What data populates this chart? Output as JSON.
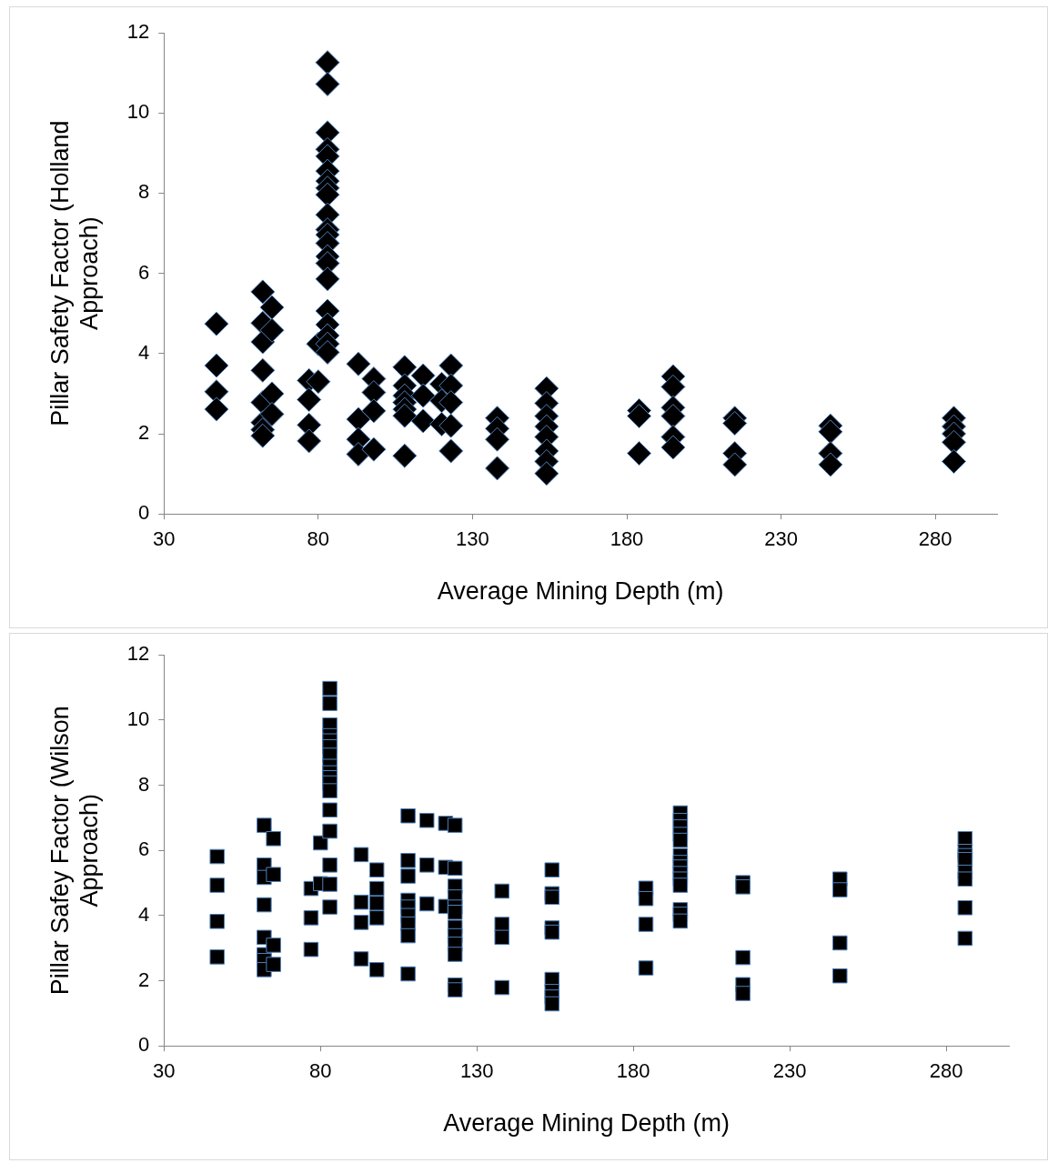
{
  "chart_data": [
    {
      "type": "scatter",
      "xlabel": "Average Mining Depth (m)",
      "ylabel": "Pillar Safety Factor (Holland Approach)",
      "color": "#000000",
      "marker": "diamond",
      "xlim": [
        30,
        300
      ],
      "xticks": [
        30,
        80,
        130,
        180,
        230,
        280
      ],
      "ylim": [
        0,
        12
      ],
      "yticks": [
        0,
        2,
        4,
        6,
        8,
        10,
        12
      ],
      "x": [
        47,
        47,
        47,
        47,
        62,
        62,
        62,
        62,
        62,
        62,
        62,
        62,
        65,
        65,
        65,
        65,
        77,
        77,
        77,
        77,
        80,
        80,
        83,
        83,
        83,
        83,
        83,
        83,
        83,
        83,
        83,
        83,
        83,
        83,
        83,
        83,
        83,
        83,
        83,
        83,
        83,
        83,
        83,
        93,
        93,
        93,
        93,
        98,
        98,
        98,
        98,
        108,
        108,
        108,
        108,
        108,
        108,
        108,
        114,
        114,
        114,
        120,
        120,
        120,
        123,
        123,
        123,
        123,
        123,
        138,
        138,
        138,
        138,
        154,
        154,
        154,
        154,
        154,
        154,
        154,
        154,
        184,
        184,
        184,
        195,
        195,
        195,
        195,
        195,
        195,
        215,
        215,
        215,
        215,
        246,
        246,
        246,
        246,
        286,
        286,
        286,
        286,
        286
      ],
      "values": [
        4.74,
        3.7,
        3.05,
        2.61,
        5.54,
        4.76,
        4.29,
        3.58,
        2.78,
        2.28,
        2.1,
        1.95,
        5.15,
        4.58,
        3.0,
        2.49,
        3.33,
        2.85,
        2.22,
        1.82,
        4.24,
        3.3,
        11.26,
        10.72,
        9.51,
        9.09,
        8.92,
        8.55,
        8.3,
        8.13,
        7.96,
        7.46,
        7.09,
        6.96,
        6.75,
        6.42,
        6.25,
        5.86,
        5.06,
        4.72,
        4.45,
        4.24,
        4.03,
        3.74,
        2.36,
        1.86,
        1.49,
        3.37,
        3.03,
        2.57,
        1.61,
        3.66,
        3.2,
        2.95,
        2.78,
        2.61,
        2.45,
        1.45,
        3.45,
        2.95,
        2.32,
        3.24,
        2.82,
        2.24,
        3.7,
        3.2,
        2.78,
        2.2,
        1.57,
        2.39,
        2.13,
        1.86,
        1.14,
        3.13,
        2.76,
        2.44,
        2.18,
        1.92,
        1.57,
        1.31,
        1.01,
        2.58,
        2.44,
        1.51,
        3.43,
        3.17,
        2.65,
        2.44,
        1.92,
        1.66,
        2.39,
        2.26,
        1.51,
        1.23,
        2.2,
        2.05,
        1.51,
        1.23,
        2.39,
        2.18,
        2.0,
        1.79,
        1.31
      ]
    },
    {
      "type": "scatter",
      "xlabel": "Average Mining Depth (m)",
      "ylabel": "Pillar Safey Factor (Wilson Approach)",
      "color": "#000000",
      "marker": "square",
      "xlim": [
        30,
        300
      ],
      "xticks": [
        30,
        80,
        130,
        180,
        230,
        280
      ],
      "ylim": [
        0,
        12
      ],
      "yticks": [
        0,
        2,
        4,
        6,
        8,
        10,
        12
      ],
      "x": [
        47,
        47,
        47,
        47,
        62,
        62,
        62,
        62,
        62,
        62,
        62,
        62,
        65,
        65,
        65,
        65,
        77,
        77,
        77,
        80,
        80,
        83,
        83,
        83,
        83,
        83,
        83,
        83,
        83,
        83,
        83,
        83,
        83,
        83,
        83,
        83,
        83,
        83,
        93,
        93,
        93,
        93,
        98,
        98,
        98,
        98,
        98,
        108,
        108,
        108,
        108,
        108,
        108,
        108,
        108,
        108,
        114,
        114,
        114,
        120,
        120,
        120,
        123,
        123,
        123,
        123,
        123,
        123,
        123,
        123,
        123,
        123,
        123,
        123,
        138,
        138,
        138,
        138,
        154,
        154,
        154,
        154,
        154,
        154,
        154,
        154,
        154,
        184,
        184,
        184,
        184,
        195,
        195,
        195,
        195,
        195,
        195,
        195,
        195,
        195,
        195,
        195,
        195,
        195,
        195,
        215,
        215,
        215,
        215,
        215,
        246,
        246,
        246,
        246,
        286,
        286,
        286,
        286,
        286,
        286,
        286,
        286
      ],
      "values": [
        5.81,
        4.93,
        3.82,
        2.73,
        6.77,
        5.55,
        5.17,
        4.33,
        3.33,
        2.8,
        2.62,
        2.34,
        6.36,
        5.26,
        3.09,
        2.5,
        4.83,
        3.93,
        2.96,
        6.23,
        4.98,
        10.97,
        10.51,
        9.85,
        9.52,
        9.36,
        9.18,
        8.92,
        8.58,
        8.38,
        8.23,
        8.07,
        7.83,
        7.24,
        6.59,
        5.55,
        4.96,
        4.26,
        5.87,
        4.41,
        3.79,
        2.67,
        5.4,
        4.83,
        4.38,
        3.93,
        2.34,
        7.06,
        5.69,
        5.21,
        4.47,
        4.26,
        4.0,
        3.74,
        3.38,
        2.21,
        6.92,
        5.55,
        4.36,
        6.83,
        5.48,
        4.28,
        6.77,
        5.45,
        4.9,
        4.57,
        4.26,
        4.1,
        3.64,
        3.38,
        3.12,
        2.81,
        1.87,
        1.72,
        4.75,
        3.73,
        3.33,
        1.79,
        5.4,
        4.67,
        4.56,
        3.62,
        3.49,
        2.04,
        1.67,
        1.5,
        1.29,
        4.84,
        4.52,
        3.73,
        2.39,
        7.15,
        6.92,
        6.72,
        6.49,
        6.31,
        5.84,
        5.63,
        5.49,
        5.29,
        5.12,
        4.93,
        4.18,
        4.04,
        3.83,
        5.01,
        4.88,
        2.71,
        1.88,
        1.61,
        5.12,
        4.79,
        3.16,
        2.15,
        6.36,
        5.97,
        5.84,
        5.72,
        5.33,
        5.12,
        4.24,
        3.3
      ]
    }
  ]
}
